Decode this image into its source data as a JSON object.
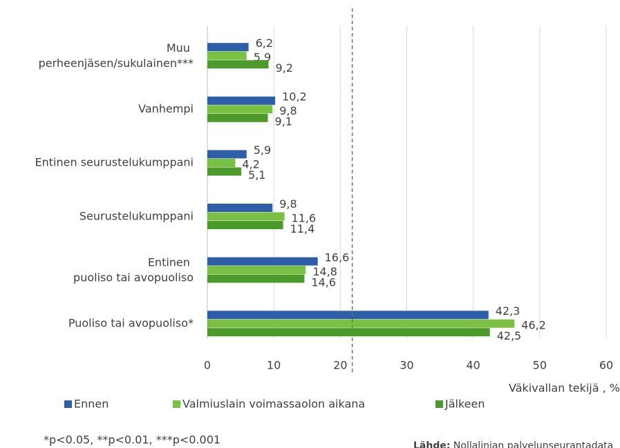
{
  "chart_data": {
    "type": "barh",
    "categories": [
      "Muu perheenjäsen/sukulainen***",
      "Vanhempi",
      "Entinen seurustelukumppani",
      "Seurustelukumppani",
      "Entinen puoliso tai avopuoliso",
      "Puoliso tai avopuoliso*"
    ],
    "series": [
      {
        "name": "Ennen",
        "color": "#2e5ea8",
        "values": [
          6.2,
          10.2,
          5.9,
          9.8,
          16.6,
          42.3
        ],
        "value_labels": [
          "6,2",
          "10,2",
          "5,9",
          "9,8",
          "16,6",
          "42,3"
        ]
      },
      {
        "name": "Valmiuslain voimassaolon aikana",
        "color": "#7ac143",
        "values": [
          5.9,
          9.8,
          4.2,
          11.6,
          14.8,
          46.2
        ],
        "value_labels": [
          "5,9",
          "9,8",
          "4,2",
          "11,6",
          "14,8",
          "46,2"
        ]
      },
      {
        "name": "Jälkeen",
        "color": "#4c9a2a",
        "values": [
          9.2,
          9.1,
          5.1,
          11.4,
          14.6,
          42.5
        ],
        "value_labels": [
          "9,2",
          "9,1",
          "5,1",
          "11,4",
          "14,6",
          "42,5"
        ]
      }
    ],
    "xlim": [
      0,
      60
    ],
    "xticks": [
      0,
      10,
      20,
      30,
      40,
      50,
      60
    ],
    "xlabel": "Väkivallan tekijä , %",
    "grid": true,
    "reference_line": {
      "value": 21.8,
      "color": "#3a9a3a"
    },
    "legend": "bottom",
    "footnote": "*p<0.05, **p<0.01, ***p<0.001",
    "source": {
      "label": "Lähde:",
      "text": "Nollalinjan palvelunseurantadata"
    }
  }
}
